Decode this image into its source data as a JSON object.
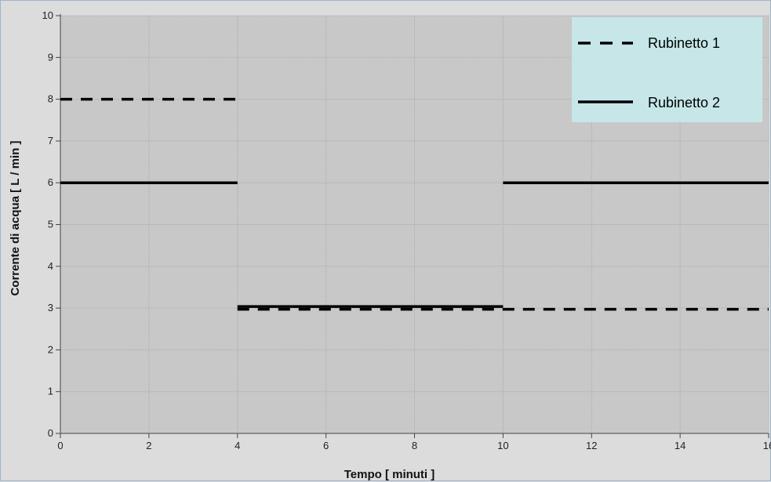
{
  "chart_data": {
    "type": "line",
    "xlabel": "Tempo [ minuti ]",
    "ylabel": "Corrente di acqua [ L / min ]",
    "xlim": [
      0,
      16
    ],
    "ylim": [
      0,
      10
    ],
    "x_ticks": [
      0,
      2,
      4,
      6,
      8,
      10,
      12,
      14,
      16
    ],
    "x_tick_labels": [
      "0",
      "2",
      "4",
      "6",
      "8",
      "10",
      "12",
      "14",
      "16"
    ],
    "y_ticks": [
      0,
      1,
      2,
      3,
      4,
      5,
      6,
      7,
      8,
      9,
      10
    ],
    "y_tick_labels": [
      "0",
      "1",
      "2",
      "3",
      "4",
      "5",
      "6",
      "7",
      "8",
      "9",
      "10"
    ],
    "grid": true,
    "legend_position": "top-right",
    "series": [
      {
        "name": "Rubinetto 1",
        "style": "dashed",
        "segments": [
          {
            "x": [
              0,
              4
            ],
            "y": [
              8,
              8
            ]
          },
          {
            "x": [
              4,
              16
            ],
            "y": [
              3,
              3
            ]
          }
        ]
      },
      {
        "name": "Rubinetto 2",
        "style": "solid",
        "segments": [
          {
            "x": [
              0,
              4
            ],
            "y": [
              6,
              6
            ]
          },
          {
            "x": [
              4,
              10
            ],
            "y": [
              3,
              3
            ]
          },
          {
            "x": [
              10,
              16
            ],
            "y": [
              6,
              6
            ]
          }
        ]
      }
    ],
    "colors": {
      "plot_background": "#c8c8c8",
      "legend_background": "#c6e6e8",
      "line": "#000000",
      "grid": "#aaaaaa"
    }
  }
}
